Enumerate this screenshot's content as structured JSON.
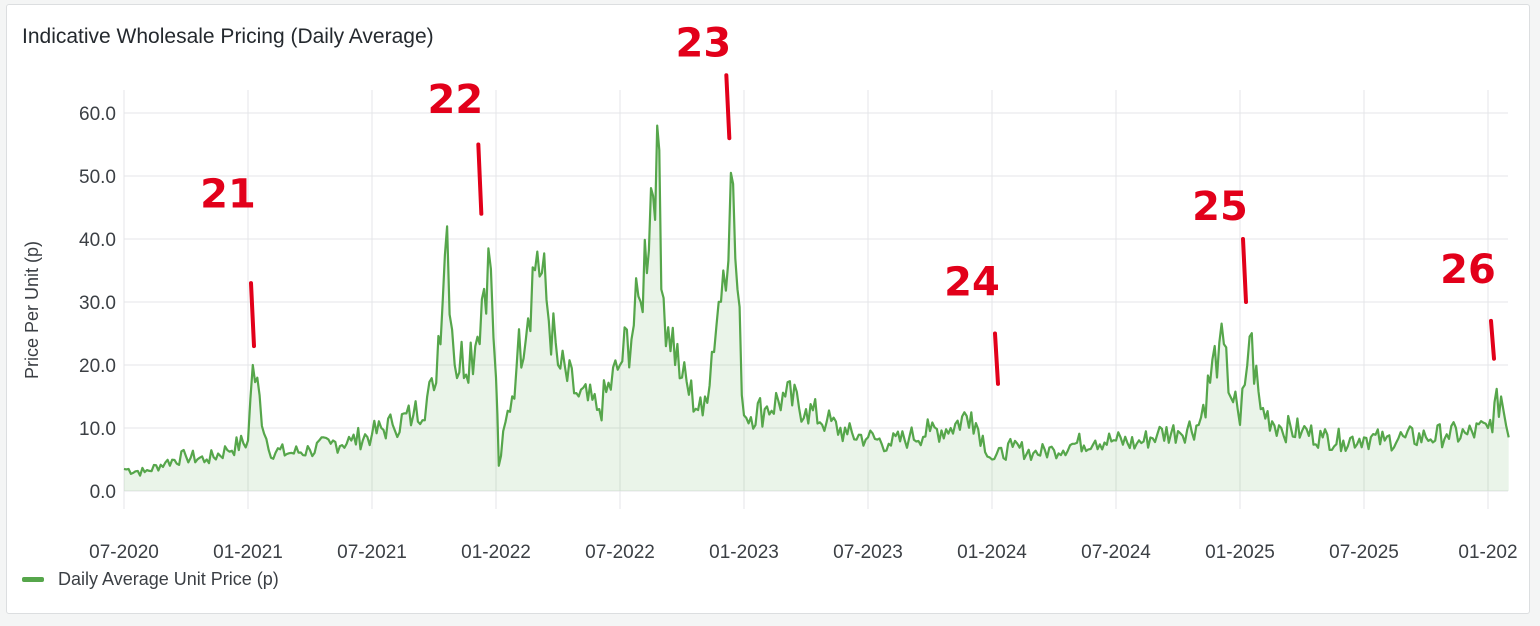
{
  "panel": {
    "title": "Indicative Wholesale Pricing (Daily Average)"
  },
  "legend": {
    "label": "Daily Average Unit Price (p)",
    "color": "#56a64b"
  },
  "chart_data": {
    "type": "line",
    "title": "Indicative Wholesale Pricing (Daily Average)",
    "xlabel": "",
    "ylabel": "Price Per Unit (p)",
    "x_ticks": [
      "07-2020",
      "01-2021",
      "07-2021",
      "01-2022",
      "07-2022",
      "01-2023",
      "07-2023",
      "01-2024",
      "07-2024",
      "01-2025",
      "07-2025",
      "01-202"
    ],
    "y_ticks": [
      "0.0",
      "10.0",
      "20.0",
      "30.0",
      "40.0",
      "50.0",
      "60.0"
    ],
    "ylim": [
      0,
      60
    ],
    "xlim": [
      "2020-07",
      "2026-02"
    ],
    "grid": true,
    "legend_position": "bottom-left",
    "series": [
      {
        "name": "Daily Average Unit Price (p)",
        "color": "#56a64b",
        "points": [
          [
            "2020-07",
            3.5
          ],
          [
            "2020-08",
            3.0
          ],
          [
            "2020-09",
            4.5
          ],
          [
            "2020-10",
            5.5
          ],
          [
            "2020-11",
            5.0
          ],
          [
            "2020-12",
            6.5
          ],
          [
            "2021-01",
            8.0
          ],
          [
            "2021-01-08",
            20.0
          ],
          [
            "2021-02",
            6.5
          ],
          [
            "2021-03",
            6.0
          ],
          [
            "2021-04",
            6.5
          ],
          [
            "2021-05",
            7.5
          ],
          [
            "2021-06",
            8.0
          ],
          [
            "2021-07",
            9.0
          ],
          [
            "2021-08",
            10.5
          ],
          [
            "2021-09",
            12.0
          ],
          [
            "2021-10",
            16.0
          ],
          [
            "2021-10-20",
            42.0
          ],
          [
            "2021-11",
            20.0
          ],
          [
            "2021-12",
            23.0
          ],
          [
            "2021-12-20",
            38.5
          ],
          [
            "2022-01",
            18.0
          ],
          [
            "2022-01-05",
            4.0
          ],
          [
            "2022-02",
            20.0
          ],
          [
            "2022-03",
            38.0
          ],
          [
            "2022-04",
            20.0
          ],
          [
            "2022-05",
            15.0
          ],
          [
            "2022-06",
            13.0
          ],
          [
            "2022-07",
            20.0
          ],
          [
            "2022-08",
            30.0
          ],
          [
            "2022-08-25",
            58.0
          ],
          [
            "2022-09",
            32.0
          ],
          [
            "2022-10",
            18.0
          ],
          [
            "2022-11",
            12.0
          ],
          [
            "2022-12",
            35.0
          ],
          [
            "2022-12-12",
            50.5
          ],
          [
            "2023-01",
            12.0
          ],
          [
            "2023-02",
            13.0
          ],
          [
            "2023-03",
            15.0
          ],
          [
            "2023-04",
            13.0
          ],
          [
            "2023-05",
            11.0
          ],
          [
            "2023-06",
            9.0
          ],
          [
            "2023-07",
            8.5
          ],
          [
            "2023-08",
            7.5
          ],
          [
            "2023-09",
            8.5
          ],
          [
            "2023-10",
            9.5
          ],
          [
            "2023-11",
            10.0
          ],
          [
            "2023-12",
            12.5
          ],
          [
            "2024-01",
            5.0
          ],
          [
            "2024-02",
            7.0
          ],
          [
            "2024-03",
            6.0
          ],
          [
            "2024-04",
            6.5
          ],
          [
            "2024-05",
            7.5
          ],
          [
            "2024-06",
            8.0
          ],
          [
            "2024-07",
            8.0
          ],
          [
            "2024-08",
            7.5
          ],
          [
            "2024-09",
            9.0
          ],
          [
            "2024-10",
            9.5
          ],
          [
            "2024-11",
            10.5
          ],
          [
            "2024-12",
            23.5
          ],
          [
            "2025-01",
            10.5
          ],
          [
            "2025-01-15",
            24.5
          ],
          [
            "2025-02",
            13.0
          ],
          [
            "2025-03",
            10.0
          ],
          [
            "2025-04",
            9.5
          ],
          [
            "2025-05",
            8.5
          ],
          [
            "2025-06",
            8.0
          ],
          [
            "2025-07",
            8.5
          ],
          [
            "2025-08",
            8.0
          ],
          [
            "2025-09",
            8.5
          ],
          [
            "2025-10",
            8.5
          ],
          [
            "2025-11",
            9.0
          ],
          [
            "2025-12",
            9.0
          ],
          [
            "2026-01",
            10.0
          ],
          [
            "2026-01-20",
            15.0
          ],
          [
            "2026-02",
            8.5
          ]
        ]
      }
    ]
  },
  "annotations": [
    {
      "text": "21",
      "x": "2021-01",
      "y_text": 45,
      "y_top": 33,
      "y_bottom": 23
    },
    {
      "text": "22",
      "x": "2021-12",
      "y_text": 60,
      "y_bottom": 44,
      "y_top": 55
    },
    {
      "text": "23",
      "x": "2022-12",
      "y_text": 69,
      "y_top": 66,
      "y_bottom": 56
    },
    {
      "text": "24",
      "x": "2024-01",
      "y_text": 31,
      "y_top": 25,
      "y_bottom": 17
    },
    {
      "text": "25",
      "x": "2025-01",
      "y_text": 43,
      "y_top": 40,
      "y_bottom": 30
    },
    {
      "text": "26",
      "x": "2026-01",
      "y_text": 33,
      "y_top": 27,
      "y_bottom": 21
    }
  ]
}
